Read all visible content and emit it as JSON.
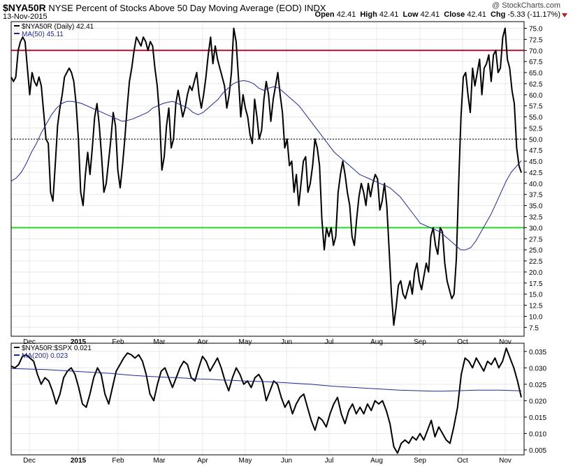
{
  "header": {
    "symbol": "$NYA50R",
    "description": "NYSE Percent of Stocks Above 50 Day Moving Average (EOD)",
    "exchange": "INDX",
    "date": "13-Nov-2015",
    "watermark": "@ StockCharts.com",
    "open_label": "Open",
    "open": "42.41",
    "high_label": "High",
    "high": "42.41",
    "low_label": "Low",
    "low": "42.41",
    "close_label": "Close",
    "close": "42.41",
    "chg_label": "Chg",
    "chg": "-5.33 (-11.17%)"
  },
  "colors": {
    "price": "#000000",
    "ma": "#1e2a8c",
    "upper": "#b0103a",
    "lower": "#22dd22",
    "grid": "#e8e8e8",
    "ref": "#000000"
  },
  "chart_data": [
    {
      "type": "line",
      "legend": [
        {
          "label": "$NYA50R (Daily) 42.41",
          "color": "#000000"
        },
        {
          "label": "MA(50) 45.11",
          "color": "#1e2a8c"
        }
      ],
      "ylim": [
        5.5,
        76.5
      ],
      "yticks": [
        7.5,
        10.0,
        12.5,
        15.0,
        17.5,
        20.0,
        22.5,
        25.0,
        27.5,
        30.0,
        32.5,
        35.0,
        37.5,
        40.0,
        42.5,
        45.0,
        47.5,
        50.0,
        52.5,
        55.0,
        57.5,
        60.0,
        62.5,
        65.0,
        67.5,
        70.0,
        72.5,
        75.0
      ],
      "hlines": [
        70,
        50,
        30
      ],
      "xticks": [
        "Dec",
        "2015",
        "Feb",
        "Mar",
        "Apr",
        "May",
        "Jun",
        "Jul",
        "Aug",
        "Sep",
        "Oct",
        "Nov"
      ],
      "series": [
        {
          "name": "$NYA50R (Daily)",
          "values": [
            64,
            63,
            64,
            70,
            72,
            73,
            72,
            66,
            60,
            65,
            63,
            62,
            64,
            62,
            56,
            50,
            49,
            38,
            36,
            44,
            53,
            57,
            60,
            64,
            65,
            66,
            65,
            63,
            58,
            50,
            38,
            35,
            42,
            47,
            42,
            48,
            55,
            58,
            53,
            46,
            38,
            40,
            45,
            50,
            56,
            53,
            43,
            39,
            44,
            50,
            57,
            63,
            66,
            70,
            73,
            72,
            71,
            73,
            72,
            70,
            72,
            71,
            66,
            62,
            55,
            43,
            46,
            53,
            57,
            48,
            50,
            58,
            61,
            58,
            55,
            57,
            60,
            62,
            61,
            63,
            65,
            60,
            57,
            60,
            64,
            69,
            73,
            67,
            71,
            68,
            66,
            64,
            62,
            57,
            60,
            65,
            75,
            72,
            64,
            55,
            60,
            57,
            55,
            51,
            49,
            59,
            55,
            50,
            52,
            59,
            63,
            60,
            54,
            59,
            62,
            65,
            60,
            56,
            48,
            50,
            44,
            45,
            38,
            42,
            35,
            40,
            45,
            46,
            38,
            40,
            44,
            50,
            48,
            44,
            32,
            25,
            30,
            28,
            30,
            26,
            28,
            38,
            42,
            45,
            42,
            38,
            35,
            28,
            26,
            32,
            37,
            40,
            38,
            35,
            40,
            37,
            40,
            42,
            41,
            34,
            36,
            40,
            35,
            25,
            15,
            8,
            12,
            17,
            18,
            15,
            14,
            16,
            18,
            15,
            20,
            22,
            18,
            16,
            19,
            22,
            20,
            28,
            30,
            26,
            24,
            30,
            29,
            22,
            18,
            16,
            14,
            15,
            23,
            40,
            55,
            64,
            65,
            60,
            56,
            66,
            62,
            65,
            68,
            60,
            66,
            67,
            69,
            63,
            69,
            70,
            65,
            66,
            73,
            75,
            68,
            66,
            61,
            58,
            48,
            44,
            42.41
          ]
        },
        {
          "name": "MA(50)",
          "values": [
            40.5,
            41.2,
            42.5,
            44.5,
            47,
            49,
            51.5,
            53.5,
            55.5,
            57,
            58,
            58.5,
            58.5,
            58.3,
            58,
            57.5,
            57,
            56.5,
            56,
            55.5,
            55,
            54.5,
            54,
            54.2,
            54.5,
            55,
            55.5,
            56,
            57,
            57.5,
            58,
            58.3,
            58.5,
            58,
            57.5,
            57,
            56,
            55.5,
            56,
            57,
            58,
            59,
            60.5,
            61.5,
            62.5,
            63,
            63.2,
            63,
            62.5,
            61.5,
            61,
            61.5,
            61.8,
            61.5,
            60.5,
            59.5,
            58.5,
            57.5,
            56,
            54.5,
            53,
            51.5,
            50,
            48.5,
            47,
            46,
            45,
            44,
            43,
            42,
            41.5,
            41,
            40.5,
            40,
            39.5,
            39,
            38,
            37,
            35.5,
            34,
            32.5,
            31,
            30.5,
            30,
            29.5,
            29,
            28,
            27,
            26,
            25,
            25,
            25.5,
            27,
            29,
            31,
            33,
            35.5,
            38,
            40.5,
            42.5,
            43.8,
            45.11
          ]
        }
      ]
    },
    {
      "type": "line",
      "legend": [
        {
          "label": "$NYA50R:$SPX 0.021",
          "color": "#000000"
        },
        {
          "label": "MA(200) 0.023",
          "color": "#1e2a8c"
        }
      ],
      "ylim": [
        0.0035,
        0.0375
      ],
      "yticks": [
        0.005,
        0.01,
        0.015,
        0.02,
        0.025,
        0.03,
        0.035
      ],
      "yticklabels": [
        "0.005",
        "0.010",
        "0.015",
        "0.020",
        "0.025",
        "0.030",
        "0.035"
      ],
      "xticks": [
        "Dec",
        "2015",
        "Feb",
        "Mar",
        "Apr",
        "May",
        "Jun",
        "Jul",
        "Aug",
        "Sep",
        "Oct",
        "Nov"
      ],
      "series": [
        {
          "name": "$NYA50R:$SPX",
          "values": [
            0.0305,
            0.03,
            0.031,
            0.0335,
            0.034,
            0.033,
            0.032,
            0.028,
            0.025,
            0.027,
            0.026,
            0.023,
            0.019,
            0.022,
            0.027,
            0.029,
            0.03,
            0.028,
            0.024,
            0.019,
            0.018,
            0.022,
            0.027,
            0.03,
            0.028,
            0.022,
            0.019,
            0.024,
            0.029,
            0.031,
            0.033,
            0.0345,
            0.034,
            0.033,
            0.034,
            0.032,
            0.028,
            0.022,
            0.02,
            0.025,
            0.029,
            0.03,
            0.027,
            0.024,
            0.027,
            0.03,
            0.032,
            0.031,
            0.027,
            0.026,
            0.03,
            0.0335,
            0.032,
            0.029,
            0.031,
            0.033,
            0.03,
            0.026,
            0.023,
            0.027,
            0.03,
            0.028,
            0.025,
            0.026,
            0.024,
            0.027,
            0.028,
            0.026,
            0.02,
            0.023,
            0.026,
            0.025,
            0.021,
            0.018,
            0.02,
            0.016,
            0.019,
            0.021,
            0.022,
            0.018,
            0.014,
            0.011,
            0.015,
            0.014,
            0.012,
            0.016,
            0.019,
            0.021,
            0.016,
            0.013,
            0.017,
            0.019,
            0.016,
            0.018,
            0.016,
            0.019,
            0.017,
            0.02,
            0.019,
            0.02,
            0.017,
            0.013,
            0.006,
            0.004,
            0.007,
            0.008,
            0.007,
            0.009,
            0.008,
            0.01,
            0.008,
            0.011,
            0.014,
            0.009,
            0.012,
            0.01,
            0.008,
            0.007,
            0.012,
            0.018,
            0.028,
            0.033,
            0.032,
            0.03,
            0.033,
            0.031,
            0.029,
            0.032,
            0.031,
            0.033,
            0.03,
            0.032,
            0.036,
            0.033,
            0.03,
            0.026,
            0.021
          ]
        },
        {
          "name": "MA(200)",
          "values": [
            0.0298,
            0.0297,
            0.0296,
            0.0295,
            0.0293,
            0.0291,
            0.0289,
            0.0287,
            0.0285,
            0.0283,
            0.028,
            0.0277,
            0.0275,
            0.0273,
            0.0271,
            0.027,
            0.0268,
            0.0266,
            0.0265,
            0.0263,
            0.0262,
            0.026,
            0.0259,
            0.0258,
            0.0256,
            0.0254,
            0.0252,
            0.025,
            0.0247,
            0.0244,
            0.0242,
            0.024,
            0.0238,
            0.0236,
            0.0234,
            0.0232,
            0.0231,
            0.023,
            0.0229,
            0.0229,
            0.023,
            0.0231,
            0.0232,
            0.0232,
            0.0232,
            0.0231,
            0.023
          ]
        }
      ]
    }
  ]
}
